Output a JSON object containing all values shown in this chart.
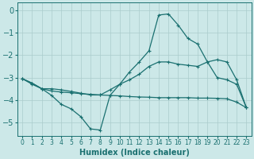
{
  "xlabel": "Humidex (Indice chaleur)",
  "xlim": [
    -0.5,
    23.5
  ],
  "ylim": [
    -5.6,
    0.35
  ],
  "yticks": [
    0,
    -1,
    -2,
    -3,
    -4,
    -5
  ],
  "xticks": [
    0,
    1,
    2,
    3,
    4,
    5,
    6,
    7,
    8,
    9,
    10,
    11,
    12,
    13,
    14,
    15,
    16,
    17,
    18,
    19,
    20,
    21,
    22,
    23
  ],
  "bg_color": "#cce8e8",
  "grid_color": "#aacccc",
  "line_color": "#1a7070",
  "line1_x": [
    0,
    1,
    2,
    3,
    4,
    5,
    6,
    7,
    8,
    9,
    10,
    11,
    12,
    13,
    14,
    15,
    16,
    17,
    18,
    19,
    20,
    21,
    22,
    23
  ],
  "line1_y": [
    -3.05,
    -3.3,
    -3.5,
    -3.8,
    -4.2,
    -4.4,
    -4.75,
    -5.3,
    -5.35,
    -3.8,
    -3.3,
    -2.75,
    -2.3,
    -1.8,
    -0.2,
    -0.15,
    -0.65,
    -1.25,
    -1.5,
    -2.3,
    -3.0,
    -3.1,
    -3.3,
    -4.35
  ],
  "line2_x": [
    0,
    1,
    2,
    3,
    4,
    5,
    6,
    7,
    8,
    9,
    10,
    11,
    12,
    13,
    14,
    15,
    16,
    17,
    18,
    19,
    20,
    21,
    22,
    23
  ],
  "line2_y": [
    -3.05,
    -3.25,
    -3.5,
    -3.5,
    -3.55,
    -3.62,
    -3.7,
    -3.78,
    -3.78,
    -3.55,
    -3.3,
    -3.1,
    -2.85,
    -2.5,
    -2.3,
    -2.3,
    -2.4,
    -2.45,
    -2.5,
    -2.3,
    -2.2,
    -2.3,
    -3.1,
    -4.35
  ],
  "line3_x": [
    0,
    1,
    2,
    3,
    4,
    5,
    6,
    7,
    8,
    9,
    10,
    11,
    12,
    13,
    14,
    15,
    16,
    17,
    18,
    19,
    20,
    21,
    22,
    23
  ],
  "line3_y": [
    -3.05,
    -3.25,
    -3.5,
    -3.6,
    -3.65,
    -3.68,
    -3.72,
    -3.75,
    -3.78,
    -3.8,
    -3.82,
    -3.85,
    -3.87,
    -3.88,
    -3.9,
    -3.9,
    -3.9,
    -3.9,
    -3.92,
    -3.92,
    -3.93,
    -3.95,
    -4.1,
    -4.35
  ]
}
